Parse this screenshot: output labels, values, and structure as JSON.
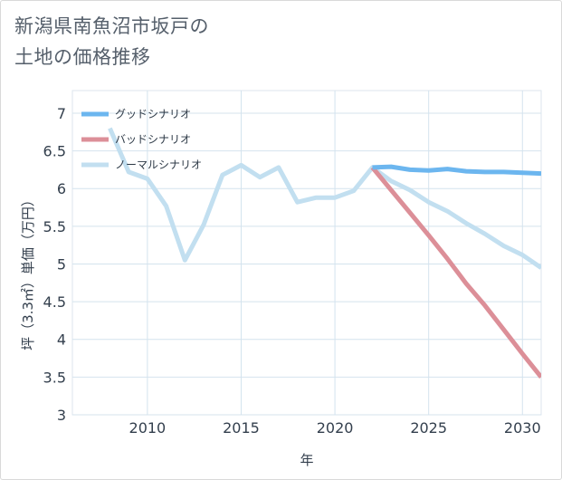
{
  "title": {
    "line1": "新潟県南魚沼市坂戸の",
    "line2": "土地の価格推移"
  },
  "chart_data": {
    "type": "line",
    "title": "新潟県南魚沼市坂戸の土地の価格推移",
    "xlabel": "年",
    "ylabel": "坪（3.3㎡）単価（万円）",
    "xlim": [
      2006,
      2031
    ],
    "ylim": [
      3,
      7.3
    ],
    "x_ticks": [
      2010,
      2015,
      2020,
      2025,
      2030
    ],
    "y_ticks": [
      3,
      3.5,
      4,
      4.5,
      5,
      5.5,
      6,
      6.5,
      7
    ],
    "grid": true,
    "legend_position": "top-left",
    "series": [
      {
        "name": "グッドシナリオ",
        "color": "#6cb6ef",
        "x": [
          2022,
          2023,
          2024,
          2025,
          2026,
          2027,
          2028,
          2029,
          2030,
          2031
        ],
        "y": [
          6.28,
          6.29,
          6.25,
          6.24,
          6.26,
          6.23,
          6.22,
          6.22,
          6.21,
          6.2
        ]
      },
      {
        "name": "バッドシナリオ",
        "color": "#dc8f98",
        "x": [
          2022,
          2023,
          2024,
          2025,
          2026,
          2027,
          2028,
          2029,
          2030,
          2031
        ],
        "y": [
          6.28,
          5.98,
          5.68,
          5.38,
          5.07,
          4.74,
          4.45,
          4.13,
          3.81,
          3.5
        ]
      },
      {
        "name": "ノーマルシナリオ",
        "color": "#c2dff0",
        "x": [
          2008,
          2009,
          2010,
          2011,
          2012,
          2013,
          2014,
          2015,
          2016,
          2017,
          2018,
          2019,
          2020,
          2021,
          2022,
          2023,
          2024,
          2025,
          2026,
          2027,
          2028,
          2029,
          2030,
          2031
        ],
        "y": [
          6.8,
          6.22,
          6.13,
          5.77,
          5.05,
          5.52,
          6.18,
          6.31,
          6.15,
          6.28,
          5.82,
          5.88,
          5.88,
          5.97,
          6.28,
          6.1,
          5.98,
          5.82,
          5.7,
          5.54,
          5.4,
          5.24,
          5.12,
          4.95
        ]
      }
    ]
  }
}
